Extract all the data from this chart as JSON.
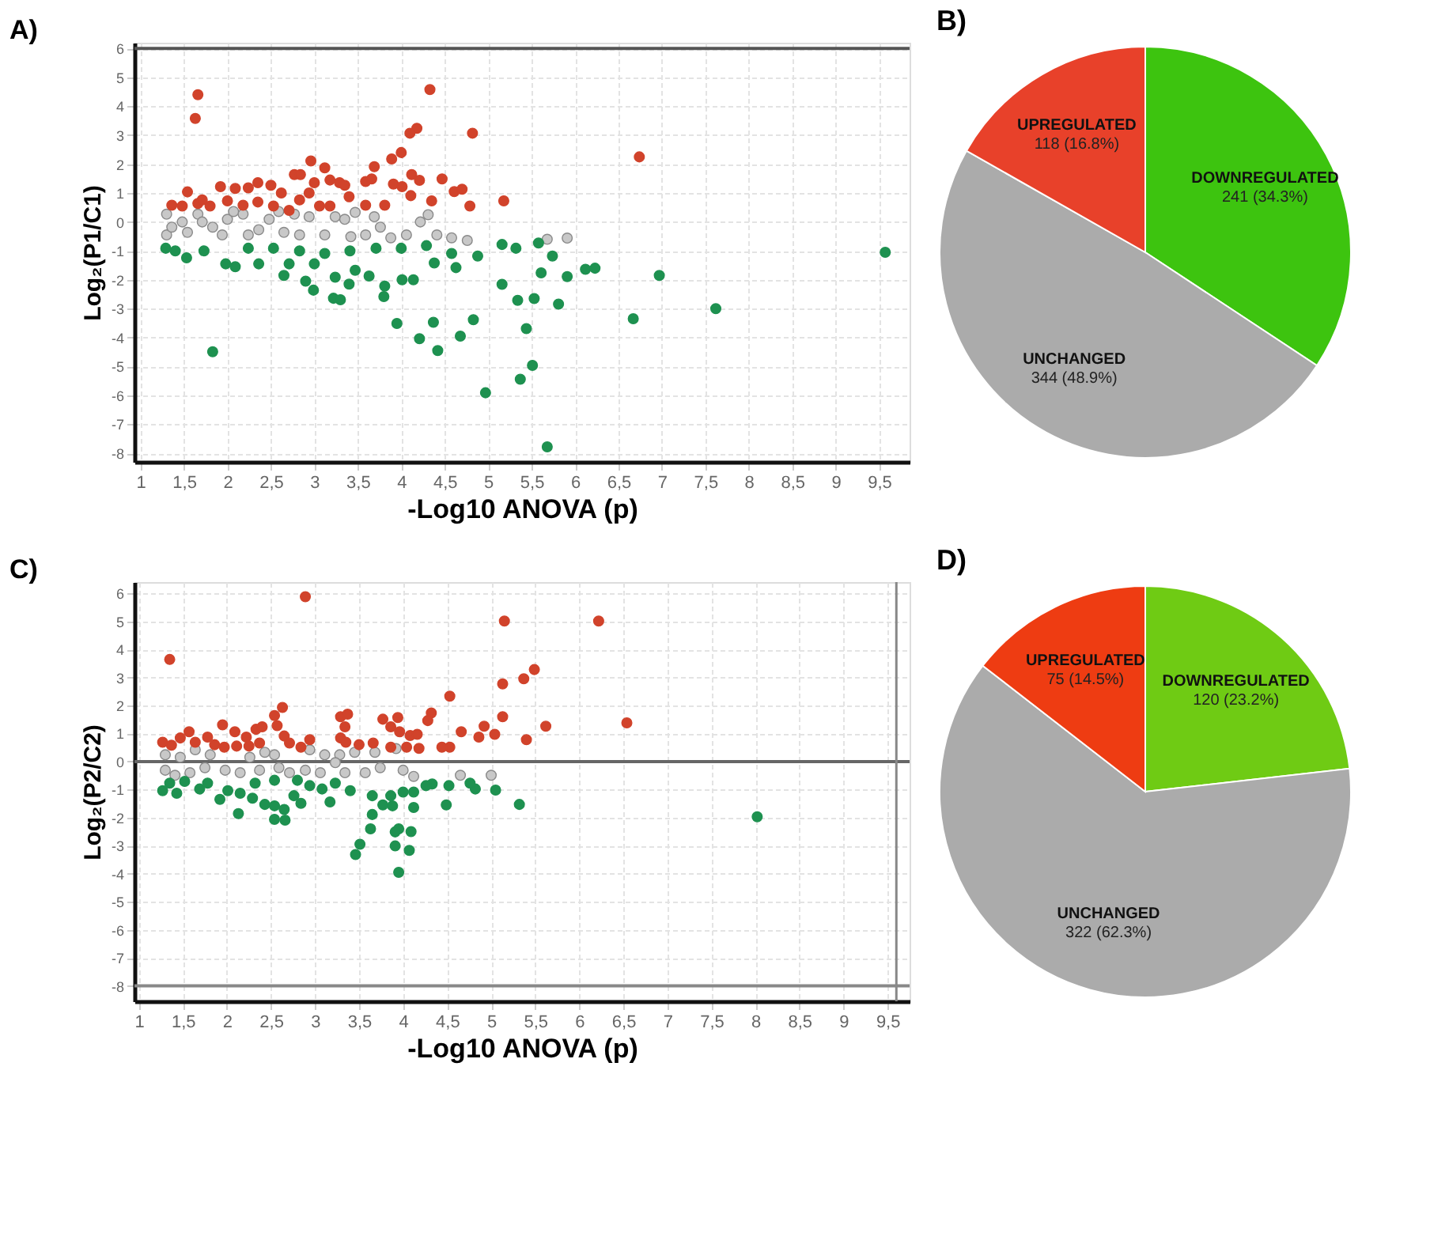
{
  "chart_data": [
    {
      "type": "scatter",
      "title": "A)",
      "xlabel": "-Log10 ANOVA (p)",
      "ylabel": "Log₂(P1/C1)",
      "xlim": [
        0.93,
        9.85
      ],
      "ylim": [
        -8.3,
        6.2
      ],
      "xticks": [
        1,
        {
          "value": 1.5,
          "label": "1,5"
        },
        2,
        {
          "value": 2.5,
          "label": "2,5"
        },
        3,
        {
          "value": 3.5,
          "label": "3,5"
        },
        4,
        {
          "value": 4.5,
          "label": "4,5"
        },
        5,
        {
          "value": 5.5,
          "label": "5,5"
        },
        6,
        {
          "value": 6.5,
          "label": "6,5"
        },
        7,
        {
          "value": 7.5,
          "label": "7,5"
        },
        8,
        {
          "value": 8.5,
          "label": "8,5"
        },
        9,
        {
          "value": 9.5,
          "label": "9,5"
        }
      ],
      "yticks": [
        -8,
        -7,
        -6,
        -5,
        -4,
        -3,
        -2,
        -1,
        0,
        1,
        2,
        3,
        4,
        5,
        6
      ],
      "grid": true,
      "legend": false,
      "marker": "circle",
      "ref_lines": [
        {
          "axis": "y",
          "value": 6,
          "label": null,
          "color": "#555555"
        }
      ],
      "series": [
        {
          "color": "#c8c8c8",
          "x": [
            5.91,
            5.68,
            4.31,
            4.22,
            3.76,
            3.69,
            3.47,
            1.3,
            1.3,
            1.48,
            1.66,
            1.83,
            2.0,
            2.18,
            2.36,
            2.48,
            2.65,
            2.77,
            2.94,
            3.12,
            3.24,
            3.35,
            3.42,
            3.59,
            3.88,
            4.06,
            4.41,
            4.58,
            4.76,
            1.36,
            1.54,
            1.94,
            2.24,
            2.83,
            2.07,
            2.59,
            1.71
          ],
          "values": [
            -0.56,
            -0.6,
            0.25,
            0,
            -0.18,
            0.18,
            0.33,
            0.27,
            -0.45,
            0,
            0.27,
            -0.18,
            0.09,
            0.27,
            -0.27,
            0.09,
            -0.36,
            0.27,
            0.18,
            -0.45,
            0.18,
            0.09,
            -0.51,
            -0.45,
            -0.55,
            -0.45,
            -0.45,
            -0.55,
            -0.64,
            -0.18,
            -0.36,
            -0.45,
            -0.45,
            -0.45,
            0.36,
            0.36,
            0
          ]
        },
        {
          "color": "#d1432b",
          "x": [
            1.66,
            1.63,
            4.33,
            4.82,
            4.18,
            4.1,
            6.74,
            2.96,
            3.12,
            2.77,
            2.84,
            3.69,
            3.89,
            4.0,
            4.12,
            4.21,
            4.47,
            4.61,
            4.7,
            4.79,
            4.35,
            5.18,
            3.59,
            3.66,
            3.91,
            4.01,
            4.11,
            3.81,
            3.59,
            3.4,
            3.29,
            3.18,
            3.0,
            2.94,
            3.06,
            3.18,
            2.83,
            2.62,
            2.5,
            2.35,
            2.24,
            2.09,
            1.92,
            1.54,
            1.36,
            1.48,
            1.66,
            1.8,
            2.0,
            2.18,
            2.35,
            2.53,
            2.71,
            1.71,
            3.35
          ],
          "values": [
            4.4,
            3.58,
            4.58,
            3.07,
            3.24,
            3.07,
            2.25,
            2.11,
            1.87,
            1.64,
            1.64,
            1.91,
            2.18,
            2.4,
            1.64,
            1.44,
            1.49,
            1.05,
            1.13,
            0.55,
            0.73,
            0.73,
            1.4,
            1.49,
            1.31,
            1.22,
            0.91,
            0.58,
            0.58,
            0.87,
            1.36,
            1.45,
            1.36,
            1.0,
            0.55,
            0.55,
            0.76,
            1.0,
            1.27,
            1.36,
            1.18,
            1.16,
            1.22,
            1.04,
            0.58,
            0.55,
            0.64,
            0.55,
            0.73,
            0.58,
            0.69,
            0.55,
            0.4,
            0.76,
            1.27
          ]
        },
        {
          "color": "#1e9150",
          "x": [
            9.57,
            7.62,
            6.97,
            6.67,
            6.12,
            6.23,
            5.91,
            5.81,
            5.74,
            5.61,
            5.58,
            5.53,
            5.34,
            5.44,
            5.51,
            5.37,
            4.97,
            5.68,
            5.16,
            4.83,
            4.68,
            4.42,
            4.37,
            4.21,
            3.95,
            1.83,
            3.8,
            3.81,
            2.99,
            3.22,
            3.3,
            3.4,
            4.14,
            4.01,
            3.63,
            3.24,
            2.9,
            2.65,
            2.36,
            2.09,
            1.98,
            1.53,
            1.29,
            1.4,
            1.73,
            2.24,
            2.53,
            2.83,
            3.12,
            3.41,
            3.71,
            4.0,
            4.29,
            4.58,
            4.88,
            5.16,
            5.32,
            4.63,
            4.38,
            2.71,
            3.47,
            3.0
          ],
          "values": [
            -1.05,
            -3.0,
            -1.85,
            -3.35,
            -1.64,
            -1.6,
            -1.89,
            -2.84,
            -1.18,
            -1.76,
            -0.73,
            -2.65,
            -2.71,
            -3.69,
            -4.96,
            -5.44,
            -5.91,
            -7.78,
            -2.16,
            -3.38,
            -3.95,
            -4.45,
            -3.47,
            -4.04,
            -3.51,
            -4.49,
            -2.58,
            -2.22,
            -2.36,
            -2.64,
            -2.69,
            -2.15,
            -2.0,
            -2.0,
            -1.87,
            -1.91,
            -2.05,
            -1.85,
            -1.45,
            -1.55,
            -1.45,
            -1.24,
            -0.91,
            -1.0,
            -1.0,
            -0.91,
            -0.91,
            -1.0,
            -1.09,
            -1.0,
            -0.91,
            -0.91,
            -0.82,
            -1.09,
            -1.18,
            -0.78,
            -0.91,
            -1.58,
            -1.42,
            -1.45,
            -1.67,
            -1.45
          ]
        }
      ]
    },
    {
      "type": "pie",
      "title": "B)",
      "categories": [
        "DOWNREGULATED",
        "UNCHANGED",
        "UPREGULATED"
      ],
      "values": [
        241,
        344,
        118
      ],
      "colors": [
        "#3dc40f",
        "#ababab",
        "#e8412a"
      ],
      "value_labels": [
        "241 (34.3%)",
        "344 (48.9%)",
        "118 (16.8%)"
      ]
    },
    {
      "type": "scatter",
      "title": "C)",
      "xlabel": "-Log10 ANOVA (p)",
      "ylabel": "Log₂(P2/C2)",
      "xlim": [
        0.95,
        9.75
      ],
      "ylim": [
        -8.55,
        6.4
      ],
      "xticks": [
        1,
        {
          "value": 1.5,
          "label": "1,5"
        },
        2,
        {
          "value": 2.5,
          "label": "2,5"
        },
        3,
        {
          "value": 3.5,
          "label": "3,5"
        },
        4,
        {
          "value": 4.5,
          "label": "4,5"
        },
        5,
        {
          "value": 5.5,
          "label": "5,5"
        },
        6,
        {
          "value": 6.5,
          "label": "6,5"
        },
        7,
        {
          "value": 7.5,
          "label": "7,5"
        },
        8,
        {
          "value": 8.5,
          "label": "8,5"
        },
        9,
        {
          "value": 9.5,
          "label": "9,5"
        }
      ],
      "yticks": [
        -8,
        -7,
        -6,
        -5,
        -4,
        -3,
        -2,
        -1,
        0,
        1,
        2,
        3,
        4,
        5,
        6
      ],
      "grid": true,
      "legend": false,
      "marker": "circle",
      "ref_lines": [
        {
          "axis": "y",
          "value": 0,
          "label": null,
          "color": "#666666"
        },
        {
          "axis": "y",
          "value": -8,
          "label": null,
          "color": "#888888"
        },
        {
          "axis": "x",
          "value": 9.6,
          "label": null,
          "color": "#888888"
        }
      ],
      "series": [
        {
          "color": "#c8c8c8",
          "x": [
            5.0,
            4.65,
            4.12,
            4.0,
            3.92,
            3.68,
            3.74,
            3.45,
            3.28,
            3.57,
            3.34,
            3.11,
            2.94,
            2.89,
            2.71,
            2.54,
            2.43,
            2.26,
            1.98,
            1.81,
            1.64,
            1.47,
            1.3,
            1.3,
            1.41,
            1.58,
            1.75,
            2.15,
            2.37,
            2.59,
            3.06,
            3.23
          ],
          "values": [
            -0.49,
            -0.49,
            -0.53,
            -0.31,
            0.46,
            0.33,
            -0.22,
            0.33,
            0.24,
            -0.4,
            -0.4,
            0.24,
            0.42,
            -0.31,
            -0.4,
            0.24,
            0.33,
            0.15,
            -0.31,
            0.24,
            0.42,
            0.15,
            0.24,
            -0.31,
            -0.49,
            -0.4,
            -0.22,
            -0.4,
            -0.31,
            -0.22,
            -0.4,
            -0.04
          ]
        },
        {
          "color": "#d1432b",
          "x": [
            2.89,
            1.35,
            5.15,
            6.22,
            5.49,
            5.37,
            5.13,
            4.53,
            4.32,
            4.28,
            5.13,
            5.62,
            6.54,
            4.92,
            4.86,
            5.04,
            5.4,
            4.66,
            4.53,
            4.44,
            2.63,
            2.54,
            2.57,
            2.65,
            2.71,
            2.84,
            2.94,
            3.29,
            3.37,
            3.34,
            3.29,
            3.35,
            3.5,
            3.66,
            3.77,
            3.86,
            3.94,
            3.96,
            4.08,
            4.16,
            3.86,
            4.04,
            4.18,
            1.95,
            2.09,
            2.22,
            2.33,
            2.4,
            1.57,
            1.47,
            1.27,
            1.37,
            1.78,
            1.86,
            1.97,
            2.11,
            2.25,
            2.37,
            1.64
          ],
          "values": [
            5.88,
            3.64,
            5.01,
            5.01,
            3.28,
            2.95,
            2.77,
            2.33,
            1.73,
            1.46,
            1.6,
            1.26,
            1.38,
            1.26,
            0.87,
            0.97,
            0.78,
            1.06,
            0.51,
            0.51,
            1.93,
            1.64,
            1.28,
            0.91,
            0.66,
            0.51,
            0.78,
            1.6,
            1.69,
            1.24,
            0.84,
            0.69,
            0.6,
            0.66,
            1.51,
            1.24,
            1.57,
            1.06,
            0.93,
            0.97,
            0.51,
            0.51,
            0.47,
            1.31,
            1.06,
            0.87,
            1.15,
            1.24,
            1.06,
            0.84,
            0.69,
            0.58,
            0.87,
            0.6,
            0.51,
            0.55,
            0.55,
            0.66,
            0.69
          ]
        },
        {
          "color": "#1e9150",
          "x": [
            8.02,
            5.32,
            5.05,
            4.82,
            4.76,
            4.52,
            4.49,
            4.33,
            4.26,
            4.12,
            4.12,
            4.09,
            4.07,
            3.95,
            3.91,
            3.95,
            3.91,
            3.88,
            3.77,
            3.65,
            3.63,
            3.51,
            3.46,
            3.86,
            4.0,
            3.65,
            3.17,
            3.4,
            3.08,
            2.94,
            2.84,
            2.76,
            2.66,
            2.54,
            2.65,
            2.54,
            2.43,
            2.13,
            1.92,
            2.29,
            2.15,
            2.01,
            1.69,
            1.43,
            1.27,
            1.35,
            1.52,
            1.78,
            2.32,
            2.54,
            3.23,
            2.8
          ],
          "values": [
            -1.97,
            -1.53,
            -1.02,
            -0.98,
            -0.77,
            -0.86,
            -1.55,
            -0.8,
            -0.86,
            -1.64,
            -1.09,
            -2.5,
            -3.17,
            -3.95,
            -3.01,
            -2.4,
            -2.51,
            -1.58,
            -1.55,
            -1.89,
            -2.4,
            -2.95,
            -3.32,
            -1.22,
            -1.09,
            -1.22,
            -1.44,
            -1.04,
            -0.98,
            -0.86,
            -1.49,
            -1.22,
            -2.09,
            -2.06,
            -1.71,
            -1.58,
            -1.53,
            -1.86,
            -1.35,
            -1.31,
            -1.13,
            -1.04,
            -0.98,
            -1.13,
            -1.04,
            -0.77,
            -0.71,
            -0.77,
            -0.77,
            -0.67,
            -0.77,
            -0.67
          ]
        }
      ]
    },
    {
      "type": "pie",
      "title": "D)",
      "categories": [
        "DOWNREGULATED",
        "UNCHANGED",
        "UPREGULATED"
      ],
      "values": [
        120,
        322,
        75
      ],
      "colors": [
        "#6fcb14",
        "#ababab",
        "#ee3c12"
      ],
      "value_labels": [
        "120 (23.2%)",
        "322 (62.3%)",
        "75 (14.5%)"
      ]
    }
  ]
}
